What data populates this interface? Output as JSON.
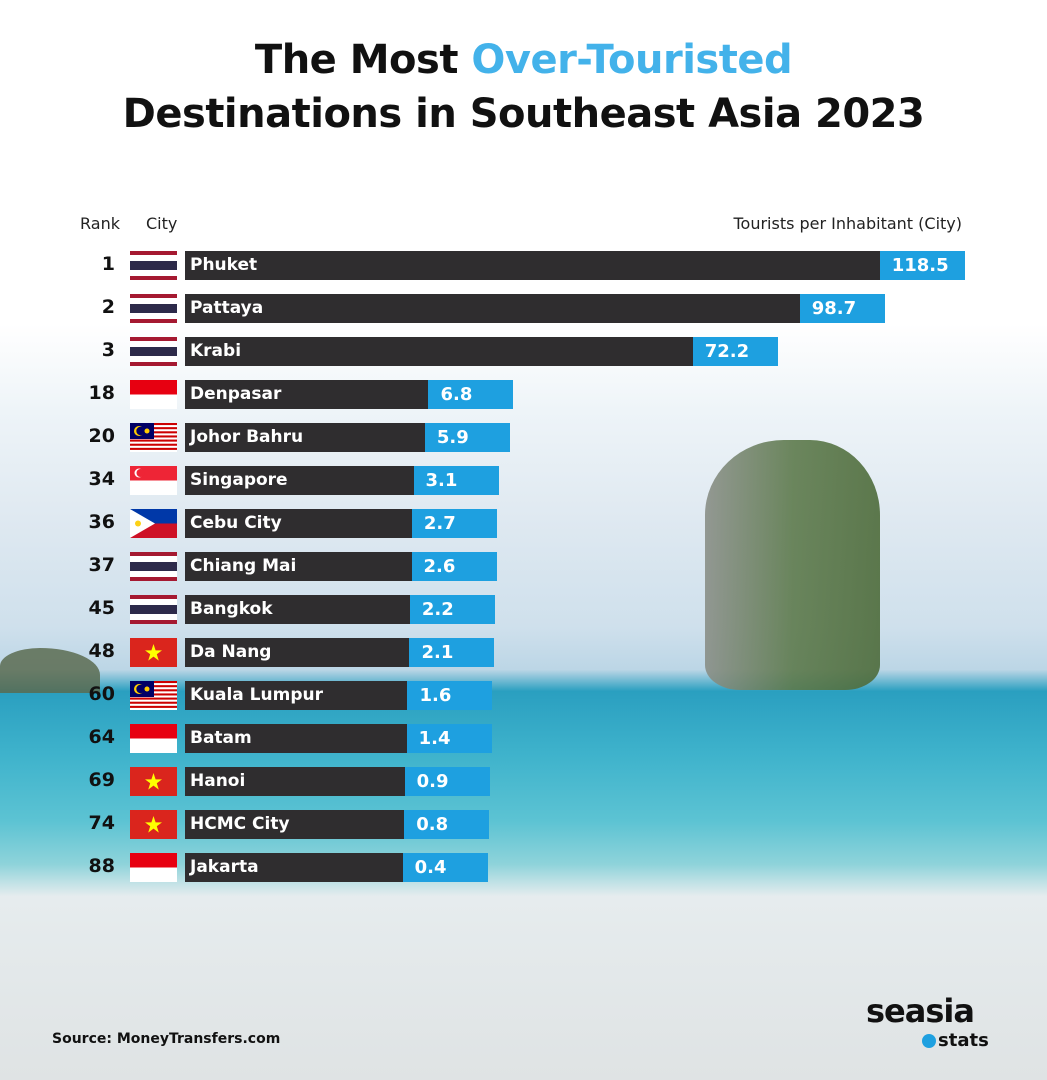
{
  "title": {
    "line1_prefix": "The Most ",
    "line1_highlight": "Over-Touristed",
    "line2": "Destinations in Southeast Asia 2023"
  },
  "colors": {
    "highlight": "#43b2ea",
    "bar": "#2f2d2f",
    "value_box": "#1ea0e0"
  },
  "chart_data": {
    "type": "bar",
    "orientation": "horizontal",
    "headers": {
      "rank": "Rank",
      "city": "City",
      "value": "Tourists per Inhabitant (City)"
    },
    "rows": [
      {
        "rank": "1",
        "city": "Phuket",
        "value": 118.5,
        "flag": "thailand-flag"
      },
      {
        "rank": "2",
        "city": "Pattaya",
        "value": 98.7,
        "flag": "thailand-flag"
      },
      {
        "rank": "3",
        "city": "Krabi",
        "value": 72.2,
        "flag": "thailand-flag"
      },
      {
        "rank": "18",
        "city": "Denpasar",
        "value": 6.8,
        "flag": "indonesia-flag"
      },
      {
        "rank": "20",
        "city": "Johor Bahru",
        "value": 5.9,
        "flag": "malaysia-flag"
      },
      {
        "rank": "34",
        "city": "Singapore",
        "value": 3.1,
        "flag": "singapore-flag"
      },
      {
        "rank": "36",
        "city": "Cebu City",
        "value": 2.7,
        "flag": "philippines-flag"
      },
      {
        "rank": "37",
        "city": "Chiang Mai",
        "value": 2.6,
        "flag": "thailand-flag"
      },
      {
        "rank": "45",
        "city": "Bangkok",
        "value": 2.2,
        "flag": "thailand-flag"
      },
      {
        "rank": "48",
        "city": "Da Nang",
        "value": 2.1,
        "flag": "vietnam-flag"
      },
      {
        "rank": "60",
        "city": "Kuala Lumpur",
        "value": 1.6,
        "flag": "malaysia-flag"
      },
      {
        "rank": "64",
        "city": "Batam",
        "value": 1.4,
        "flag": "indonesia-flag"
      },
      {
        "rank": "69",
        "city": "Hanoi",
        "value": 0.9,
        "flag": "vietnam-flag"
      },
      {
        "rank": "74",
        "city": "HCMC City",
        "value": 0.8,
        "flag": "vietnam-flag"
      },
      {
        "rank": "88",
        "city": "Jakarta",
        "value": 0.4,
        "flag": "indonesia-flag"
      }
    ]
  },
  "footer": {
    "source": "Source: MoneyTransfers.com",
    "logo_top": "seasia",
    "logo_bottom": "stats"
  }
}
